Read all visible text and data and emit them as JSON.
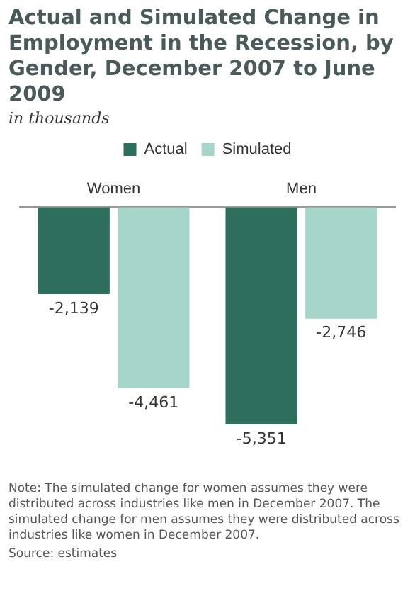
{
  "chart_data": {
    "type": "bar",
    "title": "Actual and Simulated Change in Employment in the Recession, by Gender, December 2007 to June 2009",
    "subtitle": "in thousands",
    "categories": [
      "Women",
      "Men"
    ],
    "series": [
      {
        "name": "Actual",
        "color": "#2d6e5c",
        "values": [
          -2139,
          -5351
        ],
        "value_labels": [
          "-2,139",
          "-5,351"
        ]
      },
      {
        "name": "Simulated",
        "color": "#a6d6c9",
        "values": [
          -4461,
          -2746
        ],
        "value_labels": [
          "-4,461",
          "-2,746"
        ]
      }
    ],
    "legend": "top",
    "grid": false,
    "annotations": [
      "Note: The simulated change for women assumes they were distributed across industries like men in December 2007. The simulated change for men assumes they were distributed across industries like women in December 2007.",
      "Source: estimates"
    ]
  }
}
